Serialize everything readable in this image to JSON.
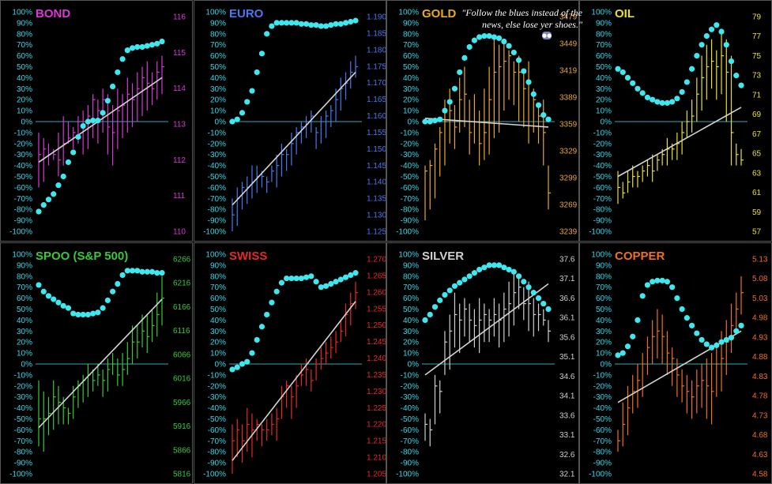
{
  "note": "\"Follow the blues instead of the news, else lose yer shoes.\"",
  "colors": {
    "bg": "#000000",
    "zero_line": "#38a8b8",
    "dots": "#3ee8ee",
    "trend": "#d4d4d4",
    "left_axis": "#38d8e8",
    "frame": "#555555"
  },
  "left_axis_ticks": [
    "100%",
    "90%",
    "80%",
    "70%",
    "60%",
    "50%",
    "40%",
    "30%",
    "20%",
    "10%",
    "0%",
    "-10%",
    "-20%",
    "-30%",
    "-40%",
    "-50%",
    "-60%",
    "-70%",
    "-80%",
    "-90%",
    "-100%"
  ],
  "chart_data": [
    {
      "type": "bar",
      "title": "BOND",
      "color": "#d838d8",
      "right_ticks": [
        "116",
        "115",
        "114",
        "113",
        "112",
        "111",
        "110"
      ],
      "ohlc_percent": [
        [
          -10,
          -60,
          -30
        ],
        [
          -15,
          -55,
          -25
        ],
        [
          -20,
          -40,
          -30
        ],
        [
          -25,
          -35,
          -30
        ],
        [
          -10,
          -50,
          -35
        ],
        [
          5,
          -40,
          -20
        ],
        [
          0,
          -20,
          -15
        ],
        [
          -5,
          -25,
          -10
        ],
        [
          5,
          -20,
          0
        ],
        [
          10,
          -30,
          -5
        ],
        [
          15,
          -25,
          5
        ],
        [
          25,
          -15,
          20
        ],
        [
          20,
          -20,
          10
        ],
        [
          30,
          -10,
          20
        ],
        [
          25,
          -30,
          -5
        ],
        [
          15,
          -40,
          -10
        ],
        [
          30,
          -25,
          10
        ],
        [
          25,
          -15,
          15
        ],
        [
          40,
          -10,
          25
        ],
        [
          35,
          -5,
          20
        ],
        [
          45,
          0,
          30
        ],
        [
          50,
          5,
          40
        ],
        [
          55,
          10,
          35
        ],
        [
          45,
          15,
          30
        ],
        [
          55,
          20,
          45
        ],
        [
          60,
          25,
          50
        ]
      ],
      "blue_dots_percent": [
        -82,
        -76,
        -71,
        -66,
        -58,
        -50,
        -37,
        -28,
        -14,
        -4,
        0,
        1,
        1,
        8,
        19,
        32,
        45,
        57,
        65,
        67,
        68,
        68,
        69,
        70,
        71,
        73
      ],
      "trend_percent": [
        -37,
        40
      ]
    },
    {
      "type": "bar",
      "title": "EURO",
      "color": "#4a78f0",
      "right_ticks": [
        "1.190",
        "1.185",
        "1.180",
        "1.175",
        "1.170",
        "1.165",
        "1.160",
        "1.155",
        "1.150",
        "1.145",
        "1.140",
        "1.135",
        "1.130",
        "1.125"
      ],
      "ohlc_percent": [
        [
          -70,
          -100,
          -85
        ],
        [
          -60,
          -95,
          -70
        ],
        [
          -55,
          -80,
          -60
        ],
        [
          -50,
          -75,
          -60
        ],
        [
          -40,
          -70,
          -55
        ],
        [
          -40,
          -65,
          -50
        ],
        [
          -45,
          -60,
          -50
        ],
        [
          -50,
          -65,
          -55
        ],
        [
          -40,
          -55,
          -45
        ],
        [
          -30,
          -60,
          -40
        ],
        [
          -20,
          -50,
          -30
        ],
        [
          -25,
          -45,
          -30
        ],
        [
          -10,
          -40,
          -20
        ],
        [
          -5,
          -30,
          -10
        ],
        [
          0,
          -20,
          -5
        ],
        [
          5,
          -15,
          0
        ],
        [
          10,
          -10,
          5
        ],
        [
          -5,
          -25,
          -10
        ],
        [
          5,
          -20,
          0
        ],
        [
          10,
          -15,
          5
        ],
        [
          15,
          -5,
          10
        ],
        [
          30,
          0,
          20
        ],
        [
          40,
          10,
          30
        ],
        [
          45,
          20,
          35
        ],
        [
          55,
          30,
          45
        ],
        [
          60,
          40,
          50
        ]
      ],
      "blue_dots_percent": [
        0,
        2,
        8,
        18,
        28,
        45,
        62,
        80,
        87,
        90,
        90,
        90,
        90,
        90,
        89,
        89,
        88,
        88,
        87,
        87,
        88,
        89,
        89,
        90,
        91,
        92
      ],
      "trend_percent": [
        -76,
        45
      ]
    },
    {
      "type": "bar",
      "title": "GOLD",
      "color": "#e8a830",
      "right_ticks": [
        "3479",
        "3449",
        "3419",
        "3389",
        "3359",
        "3329",
        "3299",
        "3269",
        "3239"
      ],
      "ohlc_percent": [
        [
          -40,
          -90,
          -45
        ],
        [
          -35,
          -80,
          -40
        ],
        [
          -20,
          -70,
          -25
        ],
        [
          -5,
          -50,
          -10
        ],
        [
          20,
          -40,
          0
        ],
        [
          30,
          -20,
          10
        ],
        [
          15,
          -25,
          -5
        ],
        [
          40,
          -10,
          20
        ],
        [
          50,
          -5,
          25
        ],
        [
          20,
          -30,
          -10
        ],
        [
          25,
          -20,
          0
        ],
        [
          10,
          -40,
          -20
        ],
        [
          30,
          -35,
          -10
        ],
        [
          50,
          -30,
          20
        ],
        [
          75,
          -15,
          45
        ],
        [
          70,
          -10,
          50
        ],
        [
          75,
          10,
          55
        ],
        [
          65,
          20,
          60
        ],
        [
          55,
          15,
          45
        ],
        [
          60,
          0,
          45
        ],
        [
          45,
          -5,
          30
        ],
        [
          55,
          -20,
          35
        ],
        [
          30,
          -10,
          20
        ],
        [
          15,
          -20,
          5
        ],
        [
          20,
          -40,
          -10
        ],
        [
          -40,
          -80,
          -65
        ]
      ],
      "blue_dots_percent": [
        0,
        0,
        1,
        2,
        10,
        18,
        30,
        45,
        58,
        68,
        74,
        77,
        78,
        78,
        77,
        76,
        73,
        69,
        63,
        56,
        46,
        36,
        25,
        15,
        6,
        2
      ],
      "trend_percent": [
        3,
        -5
      ]
    },
    {
      "type": "bar",
      "title": "OIL",
      "color": "#e8e030",
      "right_ticks": [
        "79",
        "77",
        "75",
        "73",
        "71",
        "69",
        "67",
        "65",
        "63",
        "61",
        "59",
        "57"
      ],
      "ohlc_percent": [
        [
          -45,
          -75,
          -60
        ],
        [
          -55,
          -70,
          -65
        ],
        [
          -45,
          -65,
          -55
        ],
        [
          -40,
          -60,
          -50
        ],
        [
          -45,
          -60,
          -50
        ],
        [
          -40,
          -55,
          -45
        ],
        [
          -35,
          -50,
          -40
        ],
        [
          -30,
          -55,
          -45
        ],
        [
          -30,
          -45,
          -35
        ],
        [
          -25,
          -40,
          -30
        ],
        [
          -15,
          -40,
          -25
        ],
        [
          -20,
          -35,
          -25
        ],
        [
          -10,
          -35,
          -20
        ],
        [
          0,
          -30,
          -10
        ],
        [
          10,
          -15,
          0
        ],
        [
          20,
          -10,
          5
        ],
        [
          40,
          0,
          25
        ],
        [
          60,
          10,
          40
        ],
        [
          70,
          20,
          50
        ],
        [
          75,
          30,
          55
        ],
        [
          65,
          20,
          50
        ],
        [
          80,
          25,
          60
        ],
        [
          75,
          0,
          45
        ],
        [
          60,
          -40,
          -10
        ],
        [
          -20,
          -40,
          -30
        ],
        [
          -25,
          -40,
          -35
        ]
      ],
      "blue_dots_percent": [
        48,
        45,
        40,
        35,
        30,
        26,
        22,
        20,
        18,
        17,
        17,
        18,
        21,
        27,
        36,
        48,
        60,
        70,
        78,
        84,
        88,
        82,
        70,
        55,
        42,
        33
      ],
      "trend_percent": [
        -50,
        13
      ]
    },
    {
      "type": "bar",
      "title": "SPOO (S&P 500)",
      "color": "#38c838",
      "right_ticks": [
        "6266",
        "6216",
        "6166",
        "6116",
        "6066",
        "6016",
        "5966",
        "5916",
        "5866",
        "5816"
      ],
      "ohlc_percent": [
        [
          -15,
          -75,
          -50
        ],
        [
          -25,
          -80,
          -50
        ],
        [
          -30,
          -65,
          -45
        ],
        [
          -15,
          -60,
          -30
        ],
        [
          -20,
          -55,
          -35
        ],
        [
          -30,
          -55,
          -40
        ],
        [
          -40,
          -55,
          -45
        ],
        [
          -20,
          -50,
          -30
        ],
        [
          -15,
          -40,
          -20
        ],
        [
          -10,
          -35,
          -15
        ],
        [
          0,
          -30,
          -10
        ],
        [
          -5,
          -25,
          -15
        ],
        [
          0,
          -20,
          -10
        ],
        [
          -5,
          -30,
          -15
        ],
        [
          5,
          -25,
          -5
        ],
        [
          10,
          -10,
          0
        ],
        [
          5,
          -20,
          -10
        ],
        [
          10,
          -20,
          -5
        ],
        [
          20,
          -10,
          5
        ],
        [
          35,
          0,
          20
        ],
        [
          35,
          5,
          20
        ],
        [
          45,
          15,
          30
        ],
        [
          45,
          10,
          25
        ],
        [
          50,
          20,
          35
        ],
        [
          65,
          25,
          45
        ],
        [
          80,
          35,
          60
        ]
      ],
      "blue_dots_percent": [
        72,
        66,
        62,
        59,
        56,
        53,
        51,
        46,
        45,
        45,
        45,
        46,
        47,
        51,
        58,
        66,
        73,
        81,
        85,
        85,
        85,
        84,
        84,
        84,
        83,
        83
      ],
      "trend_percent": [
        -58,
        59
      ]
    },
    {
      "type": "bar",
      "title": "SWISS",
      "color": "#e82828",
      "right_ticks": [
        "1.270",
        "1.265",
        "1.260",
        "1.255",
        "1.250",
        "1.245",
        "1.240",
        "1.235",
        "1.230",
        "1.225",
        "1.220",
        "1.215",
        "1.210",
        "1.205"
      ],
      "ohlc_percent": [
        [
          -55,
          -100,
          -70
        ],
        [
          -50,
          -85,
          -60
        ],
        [
          -55,
          -90,
          -70
        ],
        [
          -40,
          -80,
          -55
        ],
        [
          -45,
          -85,
          -60
        ],
        [
          -50,
          -70,
          -55
        ],
        [
          -55,
          -75,
          -60
        ],
        [
          -50,
          -70,
          -60
        ],
        [
          -45,
          -65,
          -55
        ],
        [
          -40,
          -70,
          -50
        ],
        [
          -20,
          -50,
          -30
        ],
        [
          -15,
          -40,
          -20
        ],
        [
          -20,
          -50,
          -30
        ],
        [
          -10,
          -40,
          -20
        ],
        [
          0,
          -20,
          -10
        ],
        [
          5,
          -20,
          -5
        ],
        [
          -5,
          -25,
          -15
        ],
        [
          5,
          -15,
          0
        ],
        [
          15,
          -5,
          5
        ],
        [
          20,
          0,
          10
        ],
        [
          25,
          5,
          15
        ],
        [
          30,
          10,
          20
        ],
        [
          40,
          20,
          30
        ],
        [
          55,
          25,
          45
        ],
        [
          65,
          35,
          55
        ],
        [
          75,
          50,
          65
        ]
      ],
      "blue_dots_percent": [
        -5,
        -3,
        0,
        2,
        10,
        22,
        34,
        45,
        56,
        66,
        74,
        78,
        78,
        78,
        78,
        79,
        80,
        75,
        70,
        71,
        73,
        75,
        77,
        79,
        81,
        83
      ],
      "trend_percent": [
        -88,
        57
      ]
    },
    {
      "type": "bar",
      "title": "SILVER",
      "color": "#d0d0d0",
      "right_ticks": [
        "37.6",
        "37.1",
        "36.6",
        "36.1",
        "35.6",
        "35.1",
        "34.6",
        "34.1",
        "33.6",
        "33.1",
        "32.6",
        "32.1"
      ],
      "ohlc_percent": [
        [
          -45,
          -70,
          -55
        ],
        [
          -50,
          -75,
          -60
        ],
        [
          -10,
          -55,
          -20
        ],
        [
          -15,
          -45,
          -25
        ],
        [
          30,
          -10,
          20
        ],
        [
          45,
          -5,
          30
        ],
        [
          65,
          15,
          45
        ],
        [
          55,
          10,
          40
        ],
        [
          60,
          25,
          50
        ],
        [
          55,
          20,
          40
        ],
        [
          50,
          15,
          35
        ],
        [
          60,
          10,
          40
        ],
        [
          55,
          20,
          45
        ],
        [
          50,
          20,
          40
        ],
        [
          60,
          25,
          45
        ],
        [
          55,
          15,
          40
        ],
        [
          65,
          20,
          50
        ],
        [
          75,
          25,
          55
        ],
        [
          85,
          35,
          65
        ],
        [
          80,
          50,
          70
        ],
        [
          70,
          40,
          55
        ],
        [
          75,
          30,
          55
        ],
        [
          60,
          25,
          45
        ],
        [
          55,
          30,
          45
        ],
        [
          50,
          35,
          40
        ],
        [
          40,
          20,
          30
        ]
      ],
      "blue_dots_percent": [
        40,
        45,
        52,
        58,
        63,
        67,
        71,
        74,
        77,
        80,
        83,
        86,
        88,
        90,
        90,
        90,
        88,
        86,
        84,
        80,
        75,
        70,
        65,
        60,
        55,
        50
      ],
      "trend_percent": [
        -10,
        73
      ]
    },
    {
      "type": "bar",
      "title": "COPPER",
      "color": "#f07020",
      "right_ticks": [
        "5.13",
        "5.08",
        "5.03",
        "4.98",
        "4.93",
        "4.88",
        "4.83",
        "4.78",
        "4.73",
        "4.68",
        "4.63",
        "4.58"
      ],
      "ohlc_percent": [
        [
          -60,
          -80,
          -70
        ],
        [
          -35,
          -75,
          -55
        ],
        [
          -20,
          -65,
          -40
        ],
        [
          -10,
          -45,
          -25
        ],
        [
          0,
          -40,
          -15
        ],
        [
          10,
          -30,
          0
        ],
        [
          25,
          -10,
          15
        ],
        [
          40,
          0,
          25
        ],
        [
          50,
          5,
          30
        ],
        [
          45,
          0,
          25
        ],
        [
          30,
          -10,
          10
        ],
        [
          15,
          -20,
          5
        ],
        [
          5,
          -30,
          -10
        ],
        [
          -5,
          -35,
          -20
        ],
        [
          -10,
          -45,
          -25
        ],
        [
          -15,
          -50,
          -30
        ],
        [
          -5,
          -45,
          -20
        ],
        [
          0,
          -40,
          -15
        ],
        [
          5,
          -50,
          -20
        ],
        [
          10,
          -55,
          -25
        ],
        [
          20,
          -30,
          0
        ],
        [
          30,
          -25,
          5
        ],
        [
          40,
          -10,
          20
        ],
        [
          55,
          10,
          35
        ],
        [
          65,
          30,
          50
        ],
        [
          80,
          45,
          65
        ]
      ],
      "blue_dots_percent": [
        8,
        10,
        16,
        25,
        40,
        62,
        72,
        75,
        76,
        76,
        75,
        70,
        60,
        50,
        42,
        35,
        28,
        22,
        18,
        15,
        17,
        20,
        22,
        24,
        30,
        35
      ],
      "trend_percent": [
        -35,
        30
      ]
    }
  ]
}
